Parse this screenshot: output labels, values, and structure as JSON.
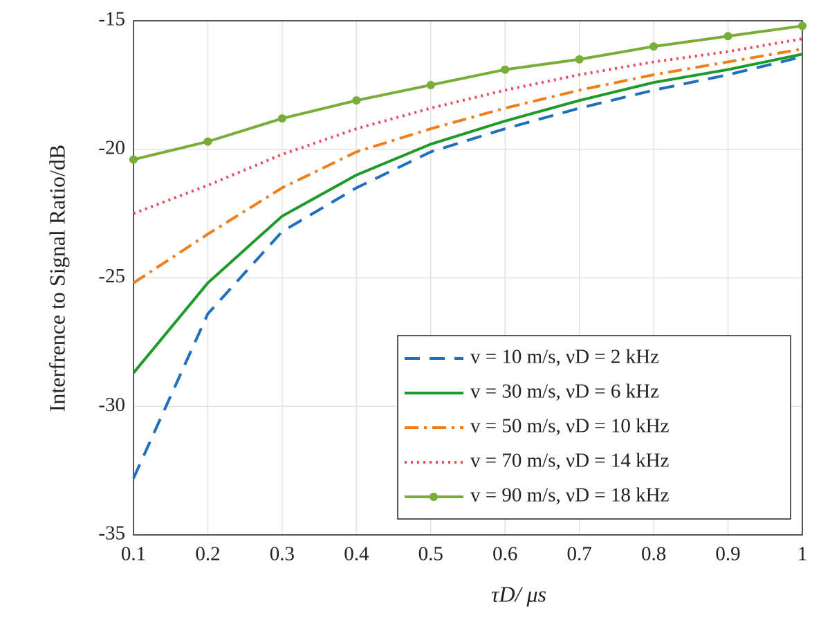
{
  "chart_data": {
    "type": "line",
    "xlabel": "τD/ μs",
    "ylabel": "Interfrence to Signal Ratio/dB",
    "x": [
      0.1,
      0.2,
      0.3,
      0.4,
      0.5,
      0.6,
      0.7,
      0.8,
      0.9,
      1
    ],
    "xlim": [
      0.1,
      1
    ],
    "xticks": [
      0.1,
      0.2,
      0.3,
      0.4,
      0.5,
      0.6,
      0.7,
      0.8,
      0.9,
      1
    ],
    "ylim": [
      -35,
      -15
    ],
    "yticks": [
      -35,
      -30,
      -25,
      -20,
      -15
    ],
    "grid": true,
    "legend_position": "lower right",
    "series": [
      {
        "name": "v = 10 m/s, νD = 2 kHz",
        "color": "#1f6fbf",
        "style": "dashed",
        "values": [
          -32.8,
          -26.4,
          -23.2,
          -21.5,
          -20.1,
          -19.2,
          -18.4,
          -17.7,
          -17.1,
          -16.4
        ]
      },
      {
        "name": "v = 30 m/s, νD = 6 kHz",
        "color": "#1e9a2a",
        "style": "solid",
        "values": [
          -28.7,
          -25.2,
          -22.6,
          -21.0,
          -19.8,
          -18.9,
          -18.1,
          -17.4,
          -16.9,
          -16.3
        ]
      },
      {
        "name": "v = 50 m/s, νD = 10 kHz",
        "color": "#f07f1a",
        "style": "dashdot",
        "values": [
          -25.2,
          -23.3,
          -21.5,
          -20.1,
          -19.2,
          -18.4,
          -17.7,
          -17.1,
          -16.6,
          -16.1
        ]
      },
      {
        "name": "v = 70 m/s, νD = 14 kHz",
        "color": "#f0475e",
        "style": "dotted",
        "values": [
          -22.5,
          -21.4,
          -20.2,
          -19.2,
          -18.4,
          -17.7,
          -17.1,
          -16.6,
          -16.2,
          -15.7
        ]
      },
      {
        "name": "v = 90 m/s, νD = 18 kHz",
        "color": "#7aac3a",
        "style": "solid-marker",
        "values": [
          -20.4,
          -19.7,
          -18.8,
          -18.1,
          -17.5,
          -16.9,
          -16.5,
          -16.0,
          -15.6,
          -15.2
        ]
      }
    ]
  }
}
